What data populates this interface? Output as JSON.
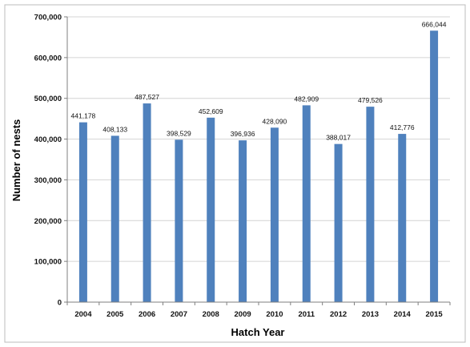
{
  "chart_data": {
    "type": "bar",
    "title": "",
    "xlabel": "Hatch Year",
    "ylabel": "Number of nests",
    "categories": [
      "2004",
      "2005",
      "2006",
      "2007",
      "2008",
      "2009",
      "2010",
      "2011",
      "2012",
      "2013",
      "2014",
      "2015"
    ],
    "values": [
      441178,
      408133,
      487527,
      398529,
      452609,
      396936,
      428090,
      482909,
      388017,
      479526,
      412776,
      666044
    ],
    "data_labels": [
      "441,178",
      "408,133",
      "487,527",
      "398,529",
      "452,609",
      "396,936",
      "428,090",
      "482,909",
      "388,017",
      "479,526",
      "412,776",
      "666,044"
    ],
    "ylim": [
      0,
      700000
    ],
    "yticks": [
      0,
      100000,
      200000,
      300000,
      400000,
      500000,
      600000,
      700000
    ],
    "ytick_labels": [
      "0",
      "100,000",
      "200,000",
      "300,000",
      "400,000",
      "500,000",
      "600,000",
      "700,000"
    ],
    "grid": true,
    "legend": "none",
    "bar_color": "#4f81bd"
  }
}
